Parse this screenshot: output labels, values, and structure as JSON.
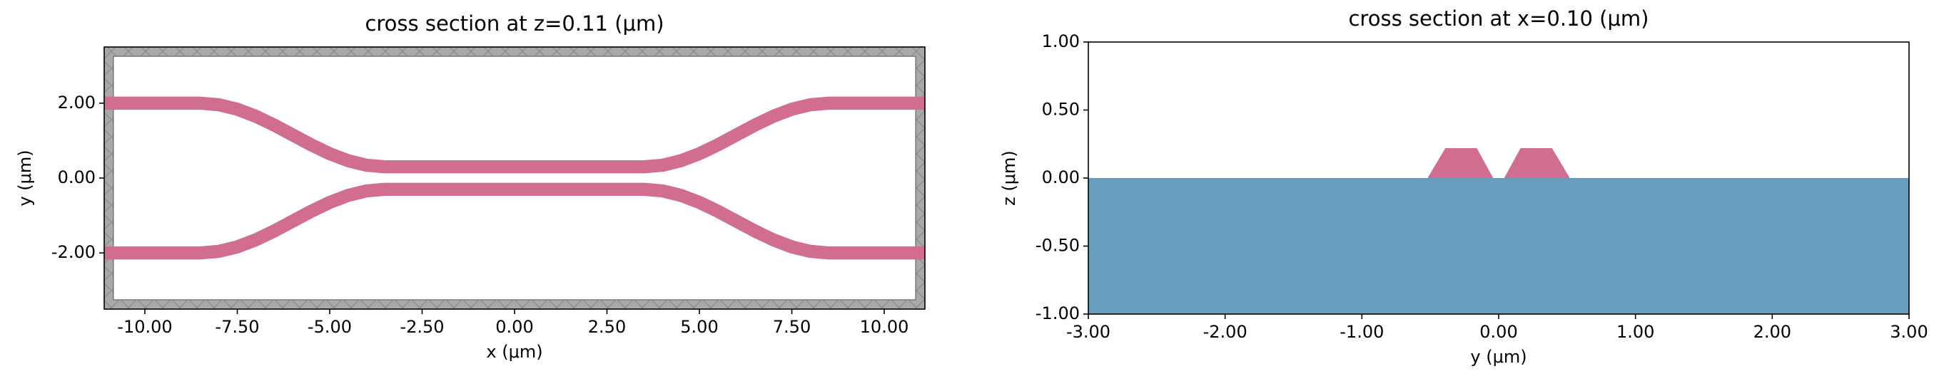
{
  "chart_data": [
    {
      "type": "geometry",
      "title": "cross section at z=0.11 (μm)",
      "xlabel": "x (μm)",
      "ylabel": "y (μm)",
      "xlim": [
        -11.1,
        11.1
      ],
      "ylim": [
        -3.5,
        3.5
      ],
      "xticks": [
        {
          "value": -10,
          "label": "-10.00"
        },
        {
          "value": -7.5,
          "label": "-7.50"
        },
        {
          "value": -5,
          "label": "-5.00"
        },
        {
          "value": -2.5,
          "label": "-2.50"
        },
        {
          "value": 0,
          "label": "0.00"
        },
        {
          "value": 2.5,
          "label": "2.50"
        },
        {
          "value": 5,
          "label": "5.00"
        },
        {
          "value": 7.5,
          "label": "7.50"
        },
        {
          "value": 10,
          "label": "10.00"
        }
      ],
      "yticks": [
        {
          "value": -2,
          "label": "-2.00"
        },
        {
          "value": 0,
          "label": "0.00"
        },
        {
          "value": 2,
          "label": "2.00"
        }
      ],
      "frame": {
        "color": "#a9a9a9",
        "xlim": [
          -10.85,
          10.85
        ],
        "ylim": [
          -3.25,
          3.25
        ]
      },
      "polylines": [
        {
          "color": "#d16d91",
          "width": 0.35,
          "x": [
            -11.1,
            -8.5,
            -8,
            -7.5,
            -7,
            -6.5,
            -6,
            -5.5,
            -5,
            -4.5,
            -4,
            -3.5,
            3.5,
            4,
            4.5,
            5,
            5.5,
            6,
            6.5,
            7,
            7.5,
            8,
            8.5,
            11.1
          ],
          "y": [
            2,
            2,
            1.958,
            1.838,
            1.65,
            1.413,
            1.15,
            0.887,
            0.65,
            0.462,
            0.342,
            0.3,
            0.3,
            0.342,
            0.462,
            0.65,
            0.887,
            1.15,
            1.413,
            1.65,
            1.838,
            1.958,
            2,
            2
          ]
        },
        {
          "color": "#d16d91",
          "width": 0.35,
          "x": [
            -11.1,
            -8.5,
            -8,
            -7.5,
            -7,
            -6.5,
            -6,
            -5.5,
            -5,
            -4.5,
            -4,
            -3.5,
            3.5,
            4,
            4.5,
            5,
            5.5,
            6,
            6.5,
            7,
            7.5,
            8,
            8.5,
            11.1
          ],
          "y": [
            -2,
            -2,
            -1.958,
            -1.838,
            -1.65,
            -1.413,
            -1.15,
            -0.887,
            -0.65,
            -0.462,
            -0.342,
            -0.3,
            -0.3,
            -0.342,
            -0.462,
            -0.65,
            -0.887,
            -1.15,
            -1.413,
            -1.65,
            -1.838,
            -1.958,
            -2,
            -2
          ]
        }
      ],
      "polygons": []
    },
    {
      "type": "geometry",
      "title": "cross section at x=0.10 (μm)",
      "xlabel": "y (μm)",
      "ylabel": "z (μm)",
      "xlim": [
        -3,
        3
      ],
      "ylim": [
        -1,
        1
      ],
      "xticks": [
        {
          "value": -3,
          "label": "-3.00"
        },
        {
          "value": -2,
          "label": "-2.00"
        },
        {
          "value": -1,
          "label": "-1.00"
        },
        {
          "value": 0,
          "label": "0.00"
        },
        {
          "value": 1,
          "label": "1.00"
        },
        {
          "value": 2,
          "label": "2.00"
        },
        {
          "value": 3,
          "label": "3.00"
        }
      ],
      "yticks": [
        {
          "value": -1,
          "label": "-1.00"
        },
        {
          "value": -0.5,
          "label": "-0.50"
        },
        {
          "value": 0,
          "label": "0.00"
        },
        {
          "value": 0.5,
          "label": "0.50"
        },
        {
          "value": 1,
          "label": "1.00"
        }
      ],
      "polylines": [],
      "polygons": [
        {
          "color": "#699dbd",
          "x": [
            -3,
            3,
            3,
            -3
          ],
          "y": [
            0,
            0,
            -1,
            -1
          ]
        },
        {
          "color": "#d16d91",
          "x": [
            -0.52,
            -0.39,
            -0.16,
            -0.04
          ],
          "y": [
            0,
            0.22,
            0.22,
            0
          ]
        },
        {
          "color": "#d16d91",
          "x": [
            0.04,
            0.16,
            0.39,
            0.52
          ],
          "y": [
            0,
            0.22,
            0.22,
            0
          ]
        }
      ]
    }
  ]
}
